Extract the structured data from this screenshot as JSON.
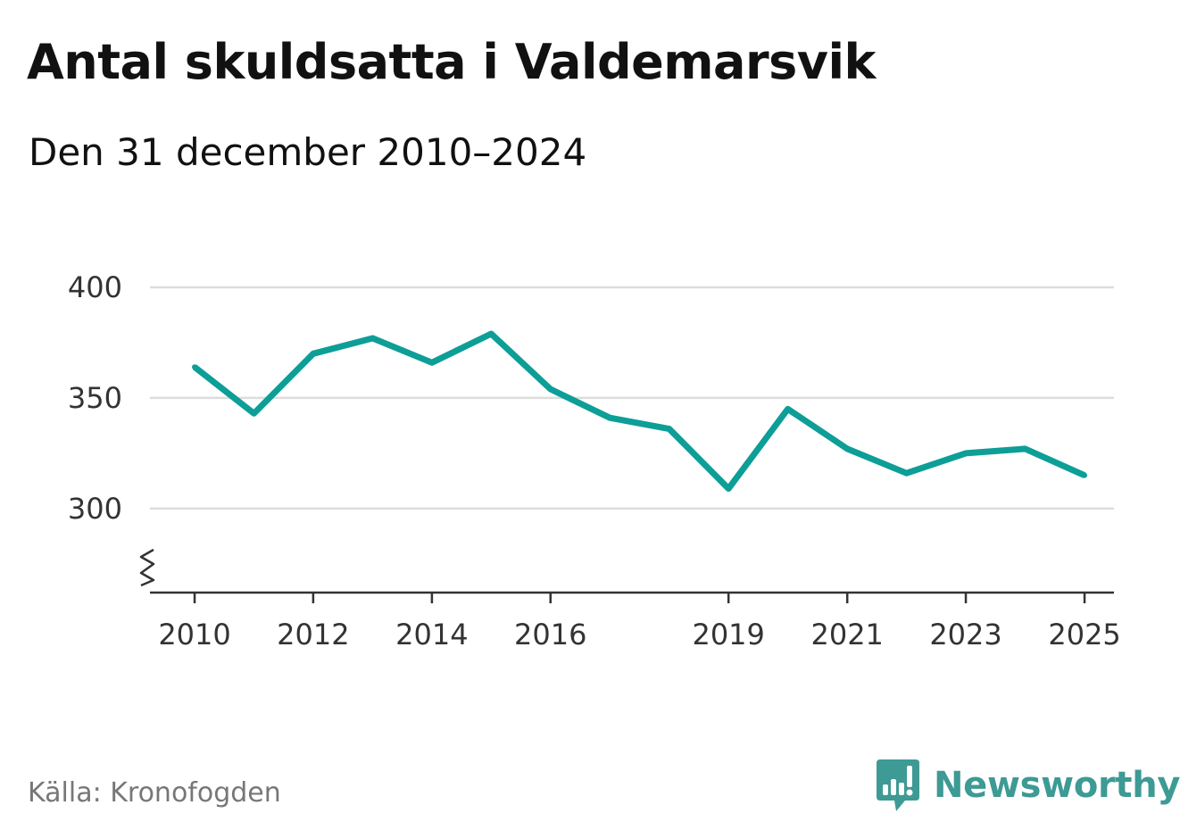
{
  "title": "Antal skuldsatta i Valdemarsvik",
  "subtitle": "Den 31 december 2010–2024",
  "source": "Källa: Kronofogden",
  "brand": {
    "name": "Newsworthy",
    "icon": "newsworthy-logo-icon",
    "color": "#3d9a94"
  },
  "chart_data": {
    "type": "line",
    "title": "Antal skuldsatta i Valdemarsvik",
    "subtitle": "Den 31 december 2010–2024",
    "xlabel": "",
    "ylabel": "",
    "x": [
      "2010-01-01",
      "2011-01-01",
      "2012-01-01",
      "2013-01-01",
      "2014-01-01",
      "2015-01-01",
      "2016-01-01",
      "2017-01-01",
      "2018-01-01",
      "2019-01-01",
      "2020-01-01",
      "2021-01-01",
      "2022-01-01",
      "2023-01-01",
      "2024-01-01",
      "2025-01-01"
    ],
    "series": [
      {
        "name": "",
        "color": "#0d9e97",
        "values": [
          364,
          343,
          370,
          377,
          366,
          379,
          354,
          341,
          336,
          309,
          345,
          327,
          316,
          325,
          327,
          315
        ]
      }
    ],
    "xlim": [
      "2009-04-01",
      "2025-07-01"
    ],
    "ylim": [
      262,
      400
    ],
    "y_ticks": [
      300,
      350,
      400
    ],
    "x_ticks": [
      {
        "label": "2010",
        "x": "2010-01-01"
      },
      {
        "label": "2012",
        "x": "2012-01-01"
      },
      {
        "label": "2014",
        "x": "2014-01-01"
      },
      {
        "label": "2016",
        "x": "2016-01-01"
      },
      {
        "label": "2019",
        "x": "2019-01-01"
      },
      {
        "label": "2021",
        "x": "2021-01-01"
      },
      {
        "label": "2023",
        "x": "2023-01-01"
      },
      {
        "label": "2025",
        "x": "2025-01-01"
      }
    ],
    "y_axis_break": true,
    "grid": true,
    "legend": "none",
    "gridline_color": "#dddddd",
    "axis_color": "#333333"
  }
}
